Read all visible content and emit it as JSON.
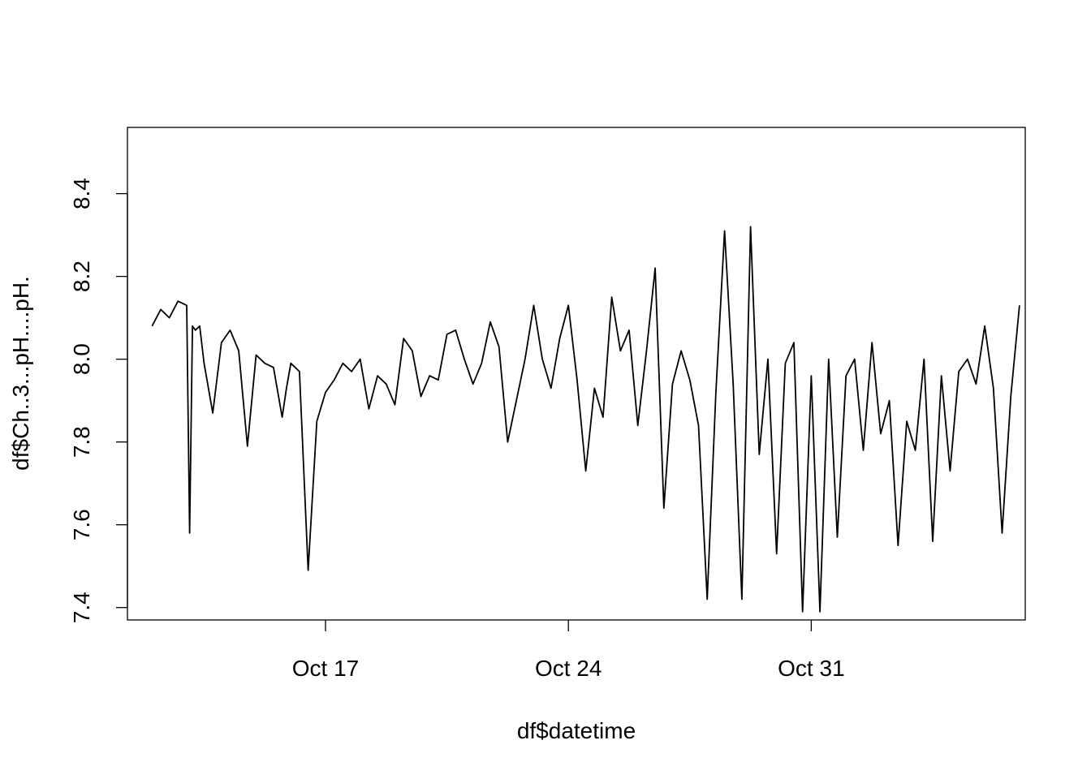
{
  "chart_data": {
    "type": "line",
    "title": "",
    "xlabel": "df$datetime",
    "ylabel": "df$Ch..3...pH....pH.",
    "x_ticks": [
      {
        "date": "Oct 17",
        "label": "Oct 17"
      },
      {
        "date": "Oct 24",
        "label": "Oct 24"
      },
      {
        "date": "Oct 31",
        "label": "Oct 31"
      }
    ],
    "xlim": [
      "Oct 11 07:00",
      "Nov 06 04:00"
    ],
    "y_ticks": [
      7.4,
      7.6,
      7.8,
      8.0,
      8.2,
      8.4
    ],
    "ylim": [
      7.37,
      8.56
    ],
    "grid": false,
    "legend": "none",
    "line_color": "#000000",
    "series": [
      {
        "x": [
          "Oct 12 00:00",
          "Oct 12 06:00",
          "Oct 12 12:00",
          "Oct 12 18:00",
          "Oct 13 00:00",
          "Oct 13 02:00",
          "Oct 13 04:00",
          "Oct 13 06:00",
          "Oct 13 09:00",
          "Oct 13 12:00",
          "Oct 13 18:00",
          "Oct 14 00:00",
          "Oct 14 06:00",
          "Oct 14 12:00",
          "Oct 14 18:00",
          "Oct 15 00:00",
          "Oct 15 06:00",
          "Oct 15 12:00",
          "Oct 15 18:00",
          "Oct 15 21:00",
          "Oct 16 00:00",
          "Oct 16 06:00",
          "Oct 16 12:00",
          "Oct 16 18:00",
          "Oct 17 00:00",
          "Oct 17 06:00",
          "Oct 17 12:00",
          "Oct 17 18:00",
          "Oct 18 00:00",
          "Oct 18 06:00",
          "Oct 18 12:00",
          "Oct 18 18:00",
          "Oct 19 00:00",
          "Oct 19 06:00",
          "Oct 19 12:00",
          "Oct 19 18:00",
          "Oct 20 00:00",
          "Oct 20 06:00",
          "Oct 20 12:00",
          "Oct 20 18:00",
          "Oct 21 00:00",
          "Oct 21 06:00",
          "Oct 21 12:00",
          "Oct 21 18:00",
          "Oct 22 00:00",
          "Oct 22 06:00",
          "Oct 22 12:00",
          "Oct 22 18:00",
          "Oct 23 00:00",
          "Oct 23 06:00",
          "Oct 23 12:00",
          "Oct 23 18:00",
          "Oct 24 00:00",
          "Oct 24 06:00",
          "Oct 24 12:00",
          "Oct 24 18:00",
          "Oct 25 00:00",
          "Oct 25 06:00",
          "Oct 25 12:00",
          "Oct 25 18:00",
          "Oct 26 00:00",
          "Oct 26 06:00",
          "Oct 26 12:00",
          "Oct 26 18:00",
          "Oct 27 00:00",
          "Oct 27 06:00",
          "Oct 27 12:00",
          "Oct 27 18:00",
          "Oct 28 00:00",
          "Oct 28 06:00",
          "Oct 28 12:00",
          "Oct 28 18:00",
          "Oct 29 00:00",
          "Oct 29 06:00",
          "Oct 29 12:00",
          "Oct 29 18:00",
          "Oct 30 00:00",
          "Oct 30 06:00",
          "Oct 30 12:00",
          "Oct 30 18:00",
          "Oct 31 00:00",
          "Oct 31 06:00",
          "Oct 31 12:00",
          "Oct 31 18:00",
          "Nov 01 00:00",
          "Nov 01 06:00",
          "Nov 01 12:00",
          "Nov 01 18:00",
          "Nov 02 00:00",
          "Nov 02 06:00",
          "Nov 02 12:00",
          "Nov 02 18:00",
          "Nov 03 00:00",
          "Nov 03 06:00",
          "Nov 03 12:00",
          "Nov 03 18:00",
          "Nov 04 00:00",
          "Nov 04 06:00",
          "Nov 04 12:00",
          "Nov 04 18:00",
          "Nov 05 00:00",
          "Nov 05 06:00",
          "Nov 05 12:00",
          "Nov 05 18:00",
          "Nov 06 00:00"
        ],
        "y": [
          8.08,
          8.12,
          8.1,
          8.14,
          8.13,
          7.58,
          8.08,
          8.07,
          8.08,
          7.99,
          7.87,
          8.04,
          8.07,
          8.02,
          7.79,
          8.01,
          7.99,
          7.98,
          7.86,
          7.93,
          7.99,
          7.97,
          7.49,
          7.85,
          7.92,
          7.95,
          7.99,
          7.97,
          8.0,
          7.88,
          7.96,
          7.94,
          7.89,
          8.05,
          8.02,
          7.91,
          7.96,
          7.95,
          8.06,
          8.07,
          8.0,
          7.94,
          7.99,
          8.09,
          8.03,
          7.8,
          7.9,
          8.0,
          8.13,
          8.0,
          7.93,
          8.05,
          8.13,
          7.95,
          7.73,
          7.93,
          7.86,
          8.15,
          8.02,
          8.07,
          7.84,
          8.02,
          8.22,
          7.64,
          7.94,
          8.02,
          7.95,
          7.84,
          7.42,
          7.92,
          8.31,
          7.94,
          7.42,
          8.32,
          7.77,
          8.0,
          7.53,
          7.99,
          8.04,
          7.39,
          7.96,
          7.39,
          8.0,
          7.57,
          7.96,
          8.0,
          7.78,
          8.04,
          7.82,
          7.9,
          7.55,
          7.85,
          7.78,
          8.0,
          7.56,
          7.96,
          7.73,
          7.97,
          8.0,
          7.94,
          8.08,
          7.93,
          7.58,
          7.91,
          8.13
        ]
      }
    ]
  }
}
